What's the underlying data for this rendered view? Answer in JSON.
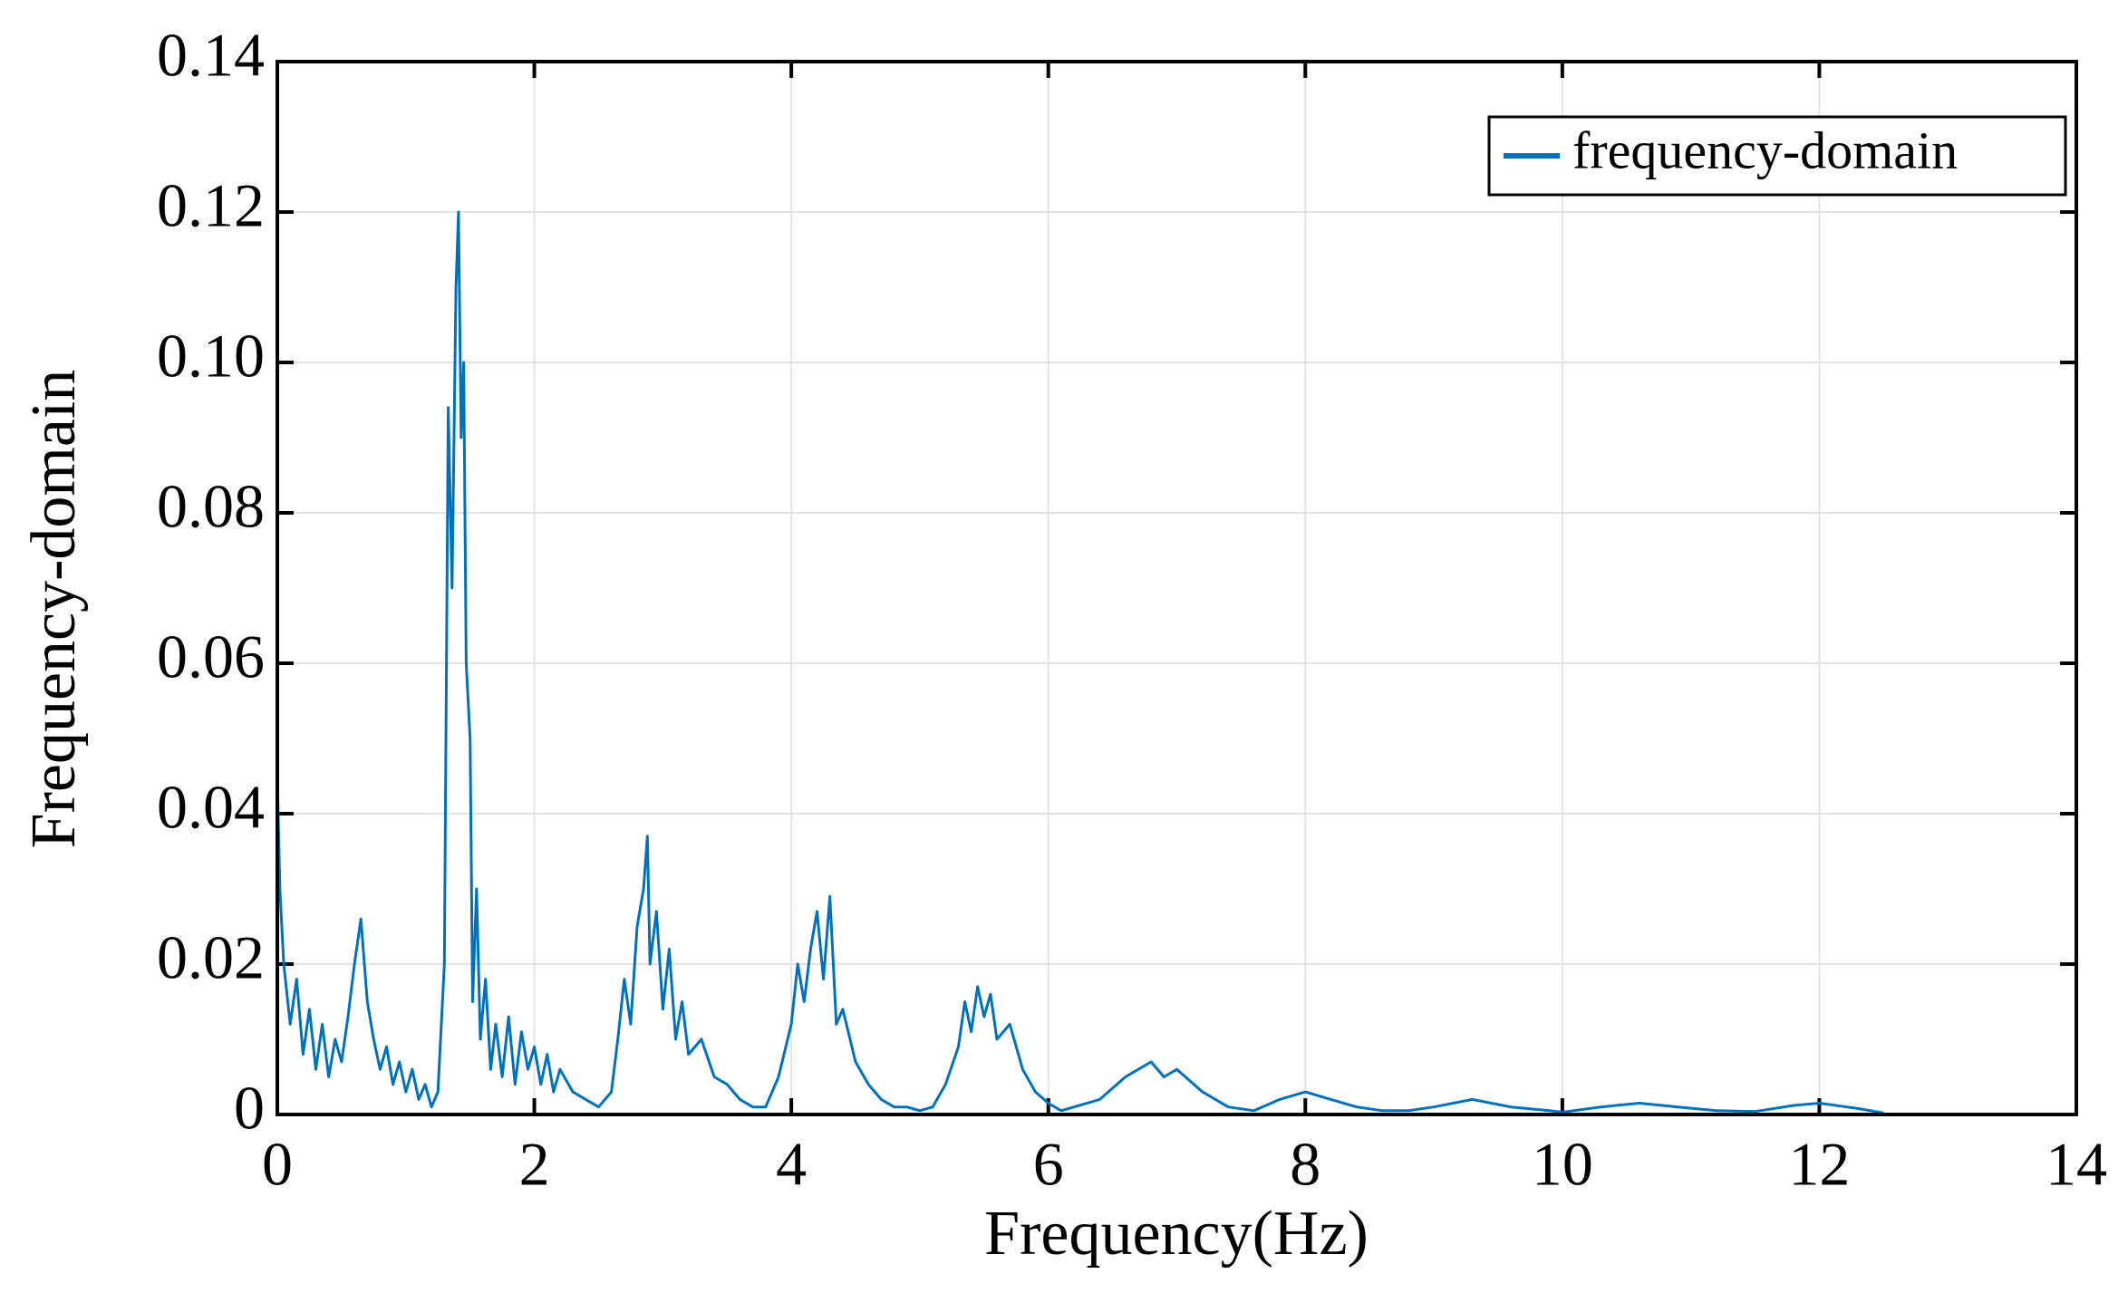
{
  "chart_data": {
    "type": "line",
    "xlabel": "Frequency(Hz)",
    "ylabel": "Frequency-domain",
    "x": [
      0,
      0.02,
      0.05,
      0.1,
      0.15,
      0.2,
      0.25,
      0.3,
      0.35,
      0.4,
      0.45,
      0.5,
      0.55,
      0.6,
      0.65,
      0.7,
      0.75,
      0.8,
      0.85,
      0.9,
      0.95,
      1.0,
      1.05,
      1.1,
      1.15,
      1.2,
      1.25,
      1.3,
      1.33,
      1.36,
      1.39,
      1.41,
      1.43,
      1.45,
      1.47,
      1.5,
      1.52,
      1.55,
      1.58,
      1.62,
      1.66,
      1.7,
      1.75,
      1.8,
      1.85,
      1.9,
      1.95,
      2.0,
      2.05,
      2.1,
      2.15,
      2.2,
      2.3,
      2.4,
      2.5,
      2.6,
      2.65,
      2.7,
      2.75,
      2.8,
      2.85,
      2.88,
      2.9,
      2.95,
      3.0,
      3.05,
      3.1,
      3.15,
      3.2,
      3.3,
      3.4,
      3.5,
      3.6,
      3.7,
      3.8,
      3.9,
      4.0,
      4.05,
      4.1,
      4.15,
      4.2,
      4.25,
      4.3,
      4.35,
      4.4,
      4.5,
      4.6,
      4.7,
      4.8,
      4.9,
      5.0,
      5.1,
      5.2,
      5.3,
      5.35,
      5.4,
      5.45,
      5.5,
      5.55,
      5.6,
      5.7,
      5.8,
      5.9,
      6.0,
      6.1,
      6.2,
      6.4,
      6.6,
      6.8,
      6.9,
      7.0,
      7.2,
      7.4,
      7.6,
      7.8,
      8.0,
      8.2,
      8.4,
      8.6,
      8.8,
      9.0,
      9.3,
      9.6,
      9.9,
      10.0,
      10.3,
      10.6,
      10.9,
      11.2,
      11.5,
      11.8,
      12.0,
      12.3,
      12.5
    ],
    "series": [
      {
        "name": "frequency-domain",
        "color": "#0072bd",
        "values": [
          0.045,
          0.03,
          0.02,
          0.012,
          0.018,
          0.008,
          0.014,
          0.006,
          0.012,
          0.005,
          0.01,
          0.007,
          0.013,
          0.02,
          0.026,
          0.015,
          0.01,
          0.006,
          0.009,
          0.004,
          0.007,
          0.003,
          0.006,
          0.002,
          0.004,
          0.001,
          0.003,
          0.02,
          0.094,
          0.07,
          0.11,
          0.12,
          0.09,
          0.1,
          0.06,
          0.05,
          0.015,
          0.03,
          0.01,
          0.018,
          0.006,
          0.012,
          0.005,
          0.013,
          0.004,
          0.011,
          0.006,
          0.009,
          0.004,
          0.008,
          0.003,
          0.006,
          0.003,
          0.002,
          0.001,
          0.003,
          0.01,
          0.018,
          0.012,
          0.025,
          0.03,
          0.037,
          0.02,
          0.027,
          0.014,
          0.022,
          0.01,
          0.015,
          0.008,
          0.01,
          0.005,
          0.004,
          0.002,
          0.001,
          0.001,
          0.005,
          0.012,
          0.02,
          0.015,
          0.022,
          0.027,
          0.018,
          0.029,
          0.012,
          0.014,
          0.007,
          0.004,
          0.002,
          0.001,
          0.001,
          0.0005,
          0.001,
          0.004,
          0.009,
          0.015,
          0.011,
          0.017,
          0.013,
          0.016,
          0.01,
          0.012,
          0.006,
          0.003,
          0.0015,
          0.0005,
          0.001,
          0.002,
          0.005,
          0.007,
          0.005,
          0.006,
          0.003,
          0.001,
          0.0005,
          0.002,
          0.003,
          0.002,
          0.001,
          0.0005,
          0.0005,
          0.001,
          0.002,
          0.001,
          0.0005,
          0.0003,
          0.001,
          0.0015,
          0.001,
          0.0005,
          0.0004,
          0.0012,
          0.0015,
          0.0008,
          0.0002
        ]
      }
    ],
    "xlim": [
      0,
      14
    ],
    "xticks": [
      0,
      2,
      4,
      6,
      8,
      10,
      12,
      14
    ],
    "ylim": [
      0,
      0.14
    ],
    "yticks": [
      0,
      0.02,
      0.04,
      0.06,
      0.08,
      {
        "value": 0.1,
        "label": "0.10"
      },
      0.12,
      0.14
    ],
    "grid": true,
    "legend": "upper right"
  }
}
